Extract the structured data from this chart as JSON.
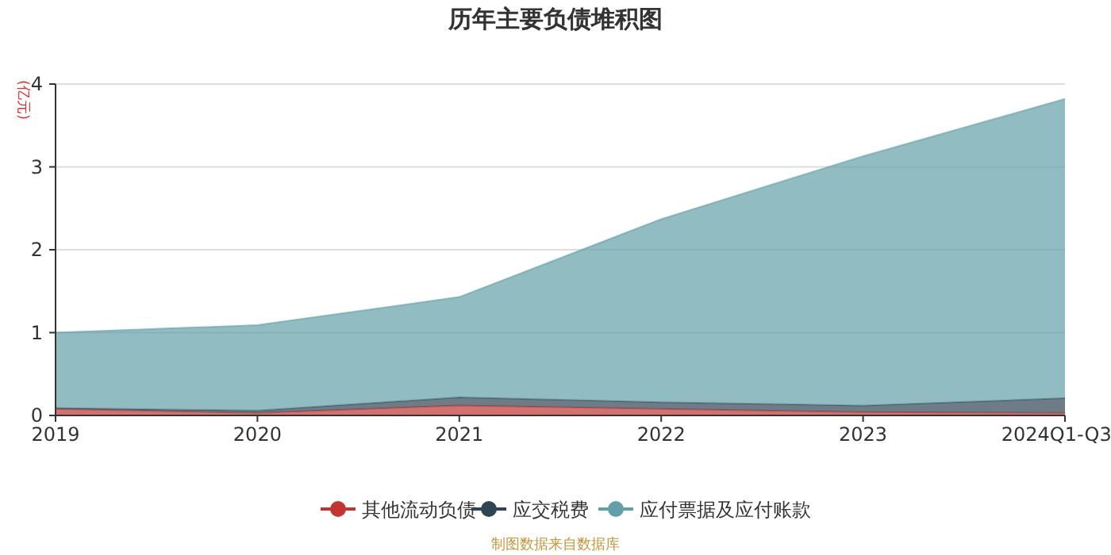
{
  "chart_data": {
    "type": "area",
    "stacked": true,
    "title": "历年主要负债堆积图",
    "ylabel": "(亿元)",
    "categories": [
      "2019",
      "2020",
      "2021",
      "2022",
      "2023",
      "2024Q1-Q3"
    ],
    "series": [
      {
        "name": "其他流动负债",
        "color": "#c23531",
        "values": [
          0.08,
          0.03,
          0.12,
          0.08,
          0.04,
          0.03
        ]
      },
      {
        "name": "应交税费",
        "color": "#2f4554",
        "values": [
          0.01,
          0.03,
          0.1,
          0.08,
          0.08,
          0.18
        ]
      },
      {
        "name": "应付票据及应付账款",
        "color": "#61a0a8",
        "values": [
          0.91,
          1.03,
          1.21,
          2.21,
          3.01,
          3.61
        ]
      }
    ],
    "ylim": [
      0,
      4
    ],
    "yticks": [
      0,
      1,
      2,
      3,
      4
    ],
    "grid": "y",
    "legend": "bottom",
    "annotations": [
      "制图数据来自数据库"
    ]
  }
}
